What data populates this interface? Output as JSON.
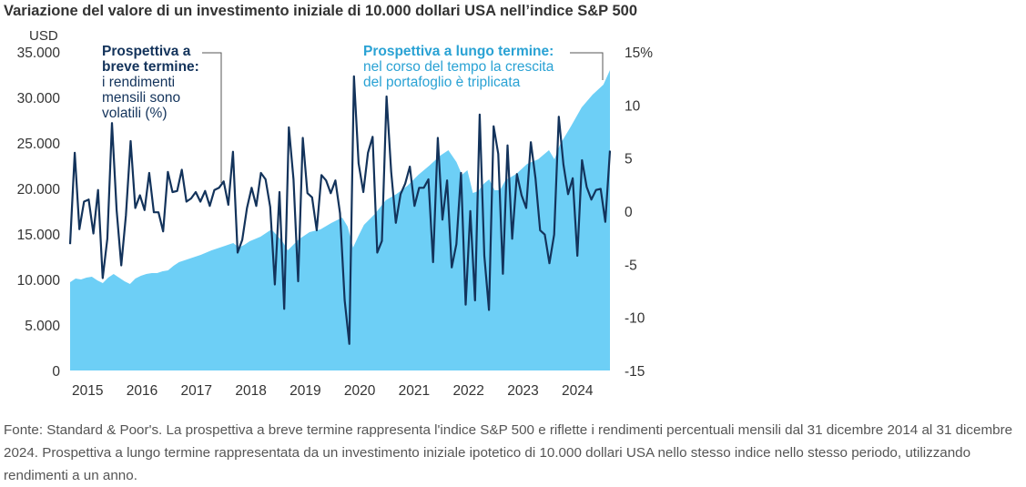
{
  "title": "Variazione del valore di un investimento iniziale di 10.000 dollari USA nell’indice S&P 500",
  "footnote": "Fonte: Standard & Poor's. La prospettiva a breve termine rappresenta l'indice S&P 500 e riflette i rendimenti percentuali mensili dal 31 dicembre 2014 al 31 dicembre 2024. Prospettiva a lungo termine rappresentata da un investimento iniziale ipotetico di 10.000 dollari USA nello stesso indice nello stesso periodo, utilizzando rendimenti a un anno.",
  "annotations": {
    "short_term": {
      "heading_1": "Prospettiva a",
      "heading_2": "breve termine:",
      "line_1": "i rendimenti",
      "line_2": "mensili sono",
      "line_3": "volatili (%)"
    },
    "long_term": {
      "heading": "Prospettiva a lungo termine:",
      "line_1": "nel corso del tempo la crescita",
      "line_2": "del portafoglio è triplicata"
    }
  },
  "colors": {
    "area": "#6dcff6",
    "line": "#13335b",
    "axis_text": "#333333",
    "annotation_long": "#2aa2d4"
  },
  "chart_data": {
    "type": "area",
    "y_unit_left": "USD",
    "y_unit_right": "%",
    "x_tick_labels": [
      "2015",
      "2016",
      "2017",
      "2018",
      "2019",
      "2020",
      "2021",
      "2022",
      "2023",
      "2024"
    ],
    "y_left_ticks": [
      "0",
      "5.000",
      "10.000",
      "15.000",
      "20.000",
      "25.000",
      "30.000",
      "35.000"
    ],
    "y_left_values": [
      0,
      5000,
      10000,
      15000,
      20000,
      25000,
      30000,
      35000
    ],
    "y_right_ticks": [
      "-15",
      "-10",
      "-5",
      "0",
      "5",
      "10",
      "15%"
    ],
    "y_right_values": [
      -15,
      -10,
      -5,
      0,
      5,
      10,
      15
    ],
    "ylim_left": [
      0,
      35000
    ],
    "ylim_right": [
      -15,
      15
    ],
    "xlim": [
      2015.0,
      2024.92
    ],
    "series": [
      {
        "name": "Prospettiva a lungo termine",
        "axis": "left",
        "type": "area",
        "x": [
          2015.0,
          2015.1,
          2015.2,
          2015.3,
          2015.4,
          2015.5,
          2015.6,
          2015.7,
          2015.8,
          2015.9,
          2016.0,
          2016.1,
          2016.2,
          2016.3,
          2016.4,
          2016.5,
          2016.6,
          2016.7,
          2016.8,
          2016.9,
          2017.0,
          2017.2,
          2017.4,
          2017.6,
          2017.8,
          2018.0,
          2018.1,
          2018.2,
          2018.3,
          2018.5,
          2018.7,
          2018.9,
          2019.0,
          2019.2,
          2019.4,
          2019.6,
          2019.8,
          2020.0,
          2020.1,
          2020.2,
          2020.3,
          2020.4,
          2020.6,
          2020.8,
          2021.0,
          2021.2,
          2021.4,
          2021.6,
          2021.8,
          2021.95,
          2022.1,
          2022.2,
          2022.3,
          2022.4,
          2022.5,
          2022.6,
          2022.7,
          2022.8,
          2022.9,
          2023.0,
          2023.2,
          2023.4,
          2023.6,
          2023.8,
          2023.9,
          2024.0,
          2024.2,
          2024.4,
          2024.6,
          2024.8,
          2024.92
        ],
        "values": [
          9700,
          10100,
          10000,
          10200,
          10300,
          9900,
          9600,
          10200,
          10600,
          10200,
          9800,
          9500,
          10100,
          10400,
          10600,
          10700,
          10700,
          10900,
          11000,
          11500,
          11900,
          12300,
          12700,
          13200,
          13600,
          14000,
          13500,
          13800,
          14200,
          14700,
          15500,
          14200,
          13200,
          14400,
          15200,
          15500,
          16200,
          16800,
          15800,
          13500,
          14800,
          16000,
          17200,
          18700,
          19400,
          20300,
          21500,
          22500,
          23600,
          24200,
          22900,
          21500,
          22000,
          19500,
          19700,
          20500,
          21000,
          19800,
          19800,
          20900,
          21600,
          22700,
          23200,
          24200,
          23200,
          24800,
          26800,
          28900,
          30300,
          31400,
          33000
        ]
      },
      {
        "name": "Prospettiva a breve termine",
        "axis": "right",
        "type": "line",
        "x_start": 2015.0,
        "x_end": 2024.92,
        "values": [
          -3.1,
          5.5,
          -1.7,
          0.9,
          1.1,
          -2.1,
          2.0,
          -6.3,
          -2.6,
          8.3,
          0.1,
          -5.1,
          -0.4,
          6.6,
          0.3,
          1.5,
          0.1,
          3.6,
          -0.1,
          -0.1,
          -1.9,
          3.7,
          1.8,
          1.9,
          3.9,
          0.9,
          1.2,
          1.8,
          0.9,
          1.9,
          0.5,
          2.0,
          2.2,
          2.8,
          0.6,
          5.6,
          -3.9,
          -2.7,
          0.3,
          2.2,
          0.5,
          3.6,
          3.0,
          0.4,
          -6.9,
          1.8,
          -9.2,
          7.9,
          3.0,
          -6.6,
          6.9,
          1.7,
          1.3,
          -1.8,
          3.4,
          2.9,
          1.7,
          2.9,
          -0.2,
          -8.4,
          -12.5,
          12.7,
          4.5,
          1.8,
          5.5,
          7.0,
          -3.9,
          -2.8,
          10.8,
          3.7,
          -1.1,
          1.6,
          2.6,
          4.2,
          0.5,
          2.2,
          2.2,
          3.0,
          -4.8,
          6.9,
          -0.8,
          2.9,
          -5.3,
          -3.1,
          3.6,
          -8.8,
          0.01,
          -8.4,
          9.1,
          -4.2,
          -9.3,
          8.0,
          5.4,
          -5.9,
          6.2,
          -2.6,
          3.5,
          1.5,
          0.3,
          6.5,
          3.1,
          -1.8,
          -2.2,
          -4.9,
          -2.2,
          8.9,
          4.4,
          1.6,
          3.1,
          -4.2,
          4.8,
          2.3,
          1.1,
          2.0,
          2.1,
          -1.0,
          5.7
        ]
      }
    ]
  }
}
